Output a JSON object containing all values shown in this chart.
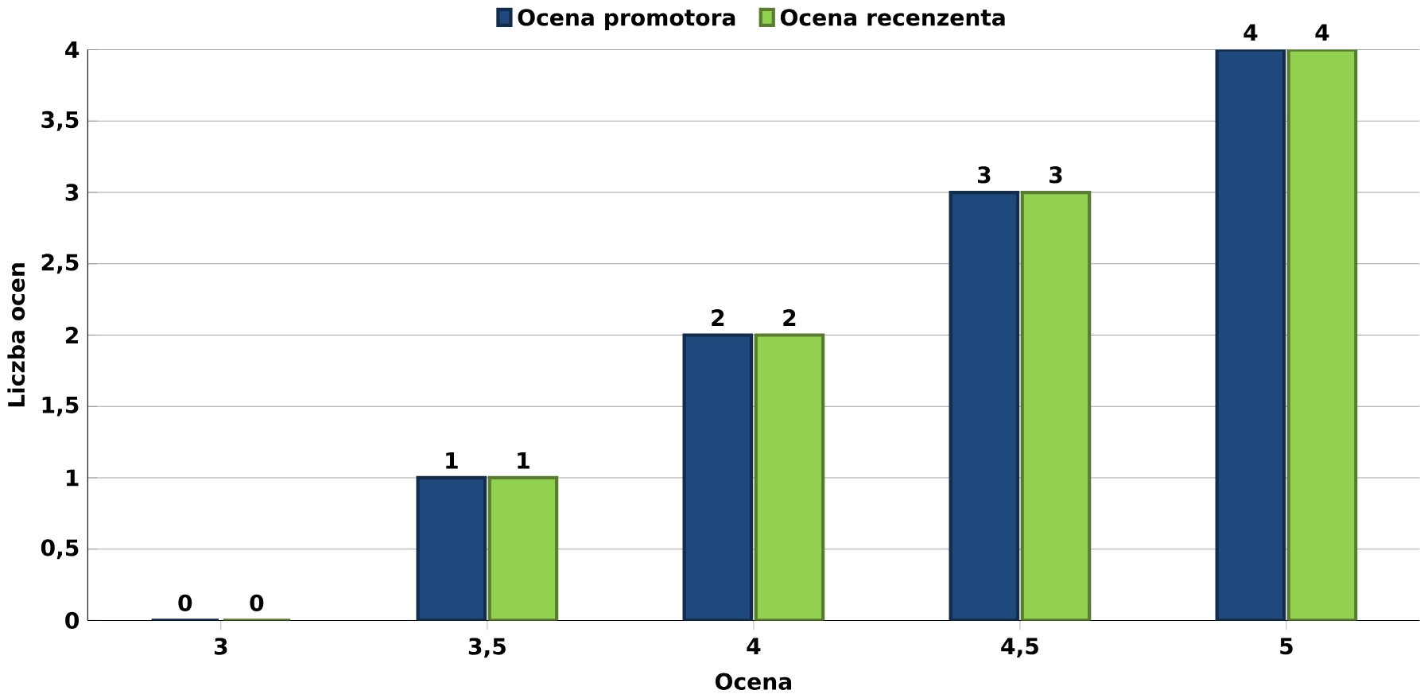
{
  "chart_data": {
    "type": "bar",
    "xlabel": "Ocena",
    "ylabel": "Liczba ocen",
    "categories": [
      "3",
      "3,5",
      "4",
      "4,5",
      "5"
    ],
    "series": [
      {
        "name": "Ocena promotora",
        "color": "#1f497d",
        "values": [
          0,
          1,
          2,
          3,
          4
        ]
      },
      {
        "name": "Ocena recenzenta",
        "color": "#92d050",
        "values": [
          0,
          1,
          2,
          3,
          4
        ]
      }
    ],
    "ylim": [
      0,
      4
    ],
    "yticks": [
      0,
      {
        "value": 0.5,
        "label": "0,5"
      },
      1,
      {
        "value": 1.5,
        "label": "1,5"
      },
      2,
      {
        "value": 2.5,
        "label": "2,5"
      },
      3,
      {
        "value": 3.5,
        "label": "3,5"
      },
      4
    ],
    "grid": "y",
    "legend": "top",
    "data_labels": true
  }
}
